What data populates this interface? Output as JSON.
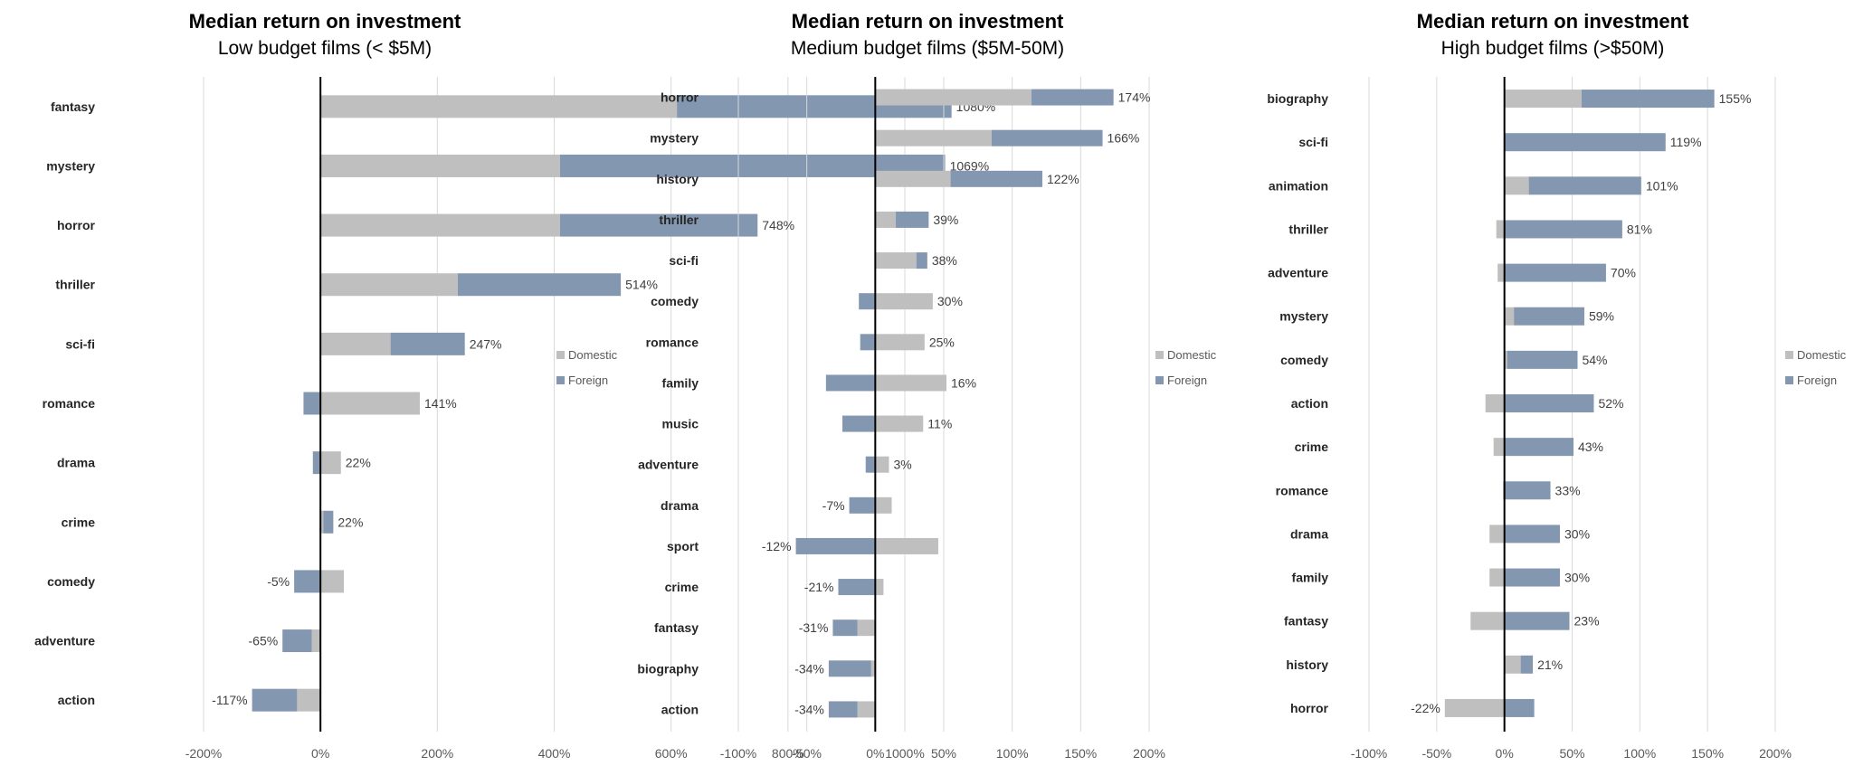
{
  "chart_data": [
    {
      "type": "bar",
      "stacked": true,
      "orientation": "horizontal",
      "title": "Median return on investment",
      "subtitle": "Low budget films (< $5M)",
      "categories": [
        "fantasy",
        "mystery",
        "horror",
        "thriller",
        "sci-fi",
        "romance",
        "drama",
        "crime",
        "comedy",
        "adventure",
        "action"
      ],
      "series": [
        {
          "name": "Domestic",
          "color": "#bfbfbf",
          "values": [
            610,
            410,
            410,
            235,
            120,
            170,
            35,
            5,
            40,
            -15,
            -40
          ]
        },
        {
          "name": "Foreign",
          "color": "#8497b0",
          "values": [
            470,
            659,
            338,
            279,
            127,
            -29,
            -13,
            17,
            -45,
            -50,
            -77
          ]
        }
      ],
      "totals": [
        "1080%",
        "1069%",
        "748%",
        "514%",
        "247%",
        "141%",
        "22%",
        "22%",
        "-5%",
        "-65%",
        "-117%"
      ],
      "xticks": [
        -200,
        0,
        200,
        400,
        600,
        800,
        1000
      ],
      "xtick_labels": [
        "-200%",
        "0%",
        "200%",
        "400%",
        "600%",
        "800%",
        "1000%"
      ],
      "xlim": [
        -200,
        1000
      ],
      "legend": "right",
      "grid": true
    },
    {
      "type": "bar",
      "stacked": true,
      "orientation": "horizontal",
      "title": "Median return on investment",
      "subtitle": "Medium budget films ($5M-50M)",
      "categories": [
        "horror",
        "mystery",
        "history",
        "thriller",
        "sci-fi",
        "comedy",
        "romance",
        "family",
        "music",
        "adventure",
        "drama",
        "sport",
        "crime",
        "fantasy",
        "biography",
        "action"
      ],
      "series": [
        {
          "name": "Domestic",
          "color": "#bfbfbf",
          "values": [
            114,
            85,
            55,
            15,
            30,
            42,
            36,
            52,
            35,
            10,
            12,
            46,
            6,
            -13,
            -3,
            -13
          ]
        },
        {
          "name": "Foreign",
          "color": "#8497b0",
          "values": [
            60,
            81,
            67,
            24,
            8,
            -12,
            -11,
            -36,
            -24,
            -7,
            -19,
            -58,
            -27,
            -18,
            -31,
            -21
          ]
        }
      ],
      "totals": [
        "174%",
        "166%",
        "122%",
        "39%",
        "38%",
        "30%",
        "25%",
        "16%",
        "11%",
        "3%",
        "-7%",
        "-12%",
        "-21%",
        "-31%",
        "-34%",
        "-34%"
      ],
      "xticks": [
        -100,
        -50,
        0,
        50,
        100,
        150,
        200
      ],
      "xtick_labels": [
        "-100%",
        "-50%",
        "0%",
        "50%",
        "100%",
        "150%",
        "200%"
      ],
      "xlim": [
        -100,
        200
      ],
      "legend": "right",
      "grid": true
    },
    {
      "type": "bar",
      "stacked": true,
      "orientation": "horizontal",
      "title": "Median return on investment",
      "subtitle": "High budget films (>$50M)",
      "categories": [
        "biography",
        "sci-fi",
        "animation",
        "thriller",
        "adventure",
        "mystery",
        "comedy",
        "action",
        "crime",
        "romance",
        "drama",
        "family",
        "fantasy",
        "history",
        "horror"
      ],
      "series": [
        {
          "name": "Domestic",
          "color": "#bfbfbf",
          "values": [
            57,
            0,
            18,
            -6,
            -5,
            7,
            2,
            -14,
            -8,
            -1,
            -11,
            -11,
            -25,
            12,
            -44
          ]
        },
        {
          "name": "Foreign",
          "color": "#8497b0",
          "values": [
            98,
            119,
            83,
            87,
            75,
            52,
            52,
            66,
            51,
            34,
            41,
            41,
            48,
            9,
            22
          ]
        }
      ],
      "totals": [
        "155%",
        "119%",
        "101%",
        "81%",
        "70%",
        "59%",
        "54%",
        "52%",
        "43%",
        "33%",
        "30%",
        "30%",
        "23%",
        "21%",
        "-22%"
      ],
      "xticks": [
        -100,
        -50,
        0,
        50,
        100,
        150,
        200
      ],
      "xtick_labels": [
        "-100%",
        "-50%",
        "0%",
        "50%",
        "100%",
        "150%",
        "200%"
      ],
      "xlim": [
        -100,
        200
      ],
      "legend": "right",
      "grid": true
    }
  ]
}
